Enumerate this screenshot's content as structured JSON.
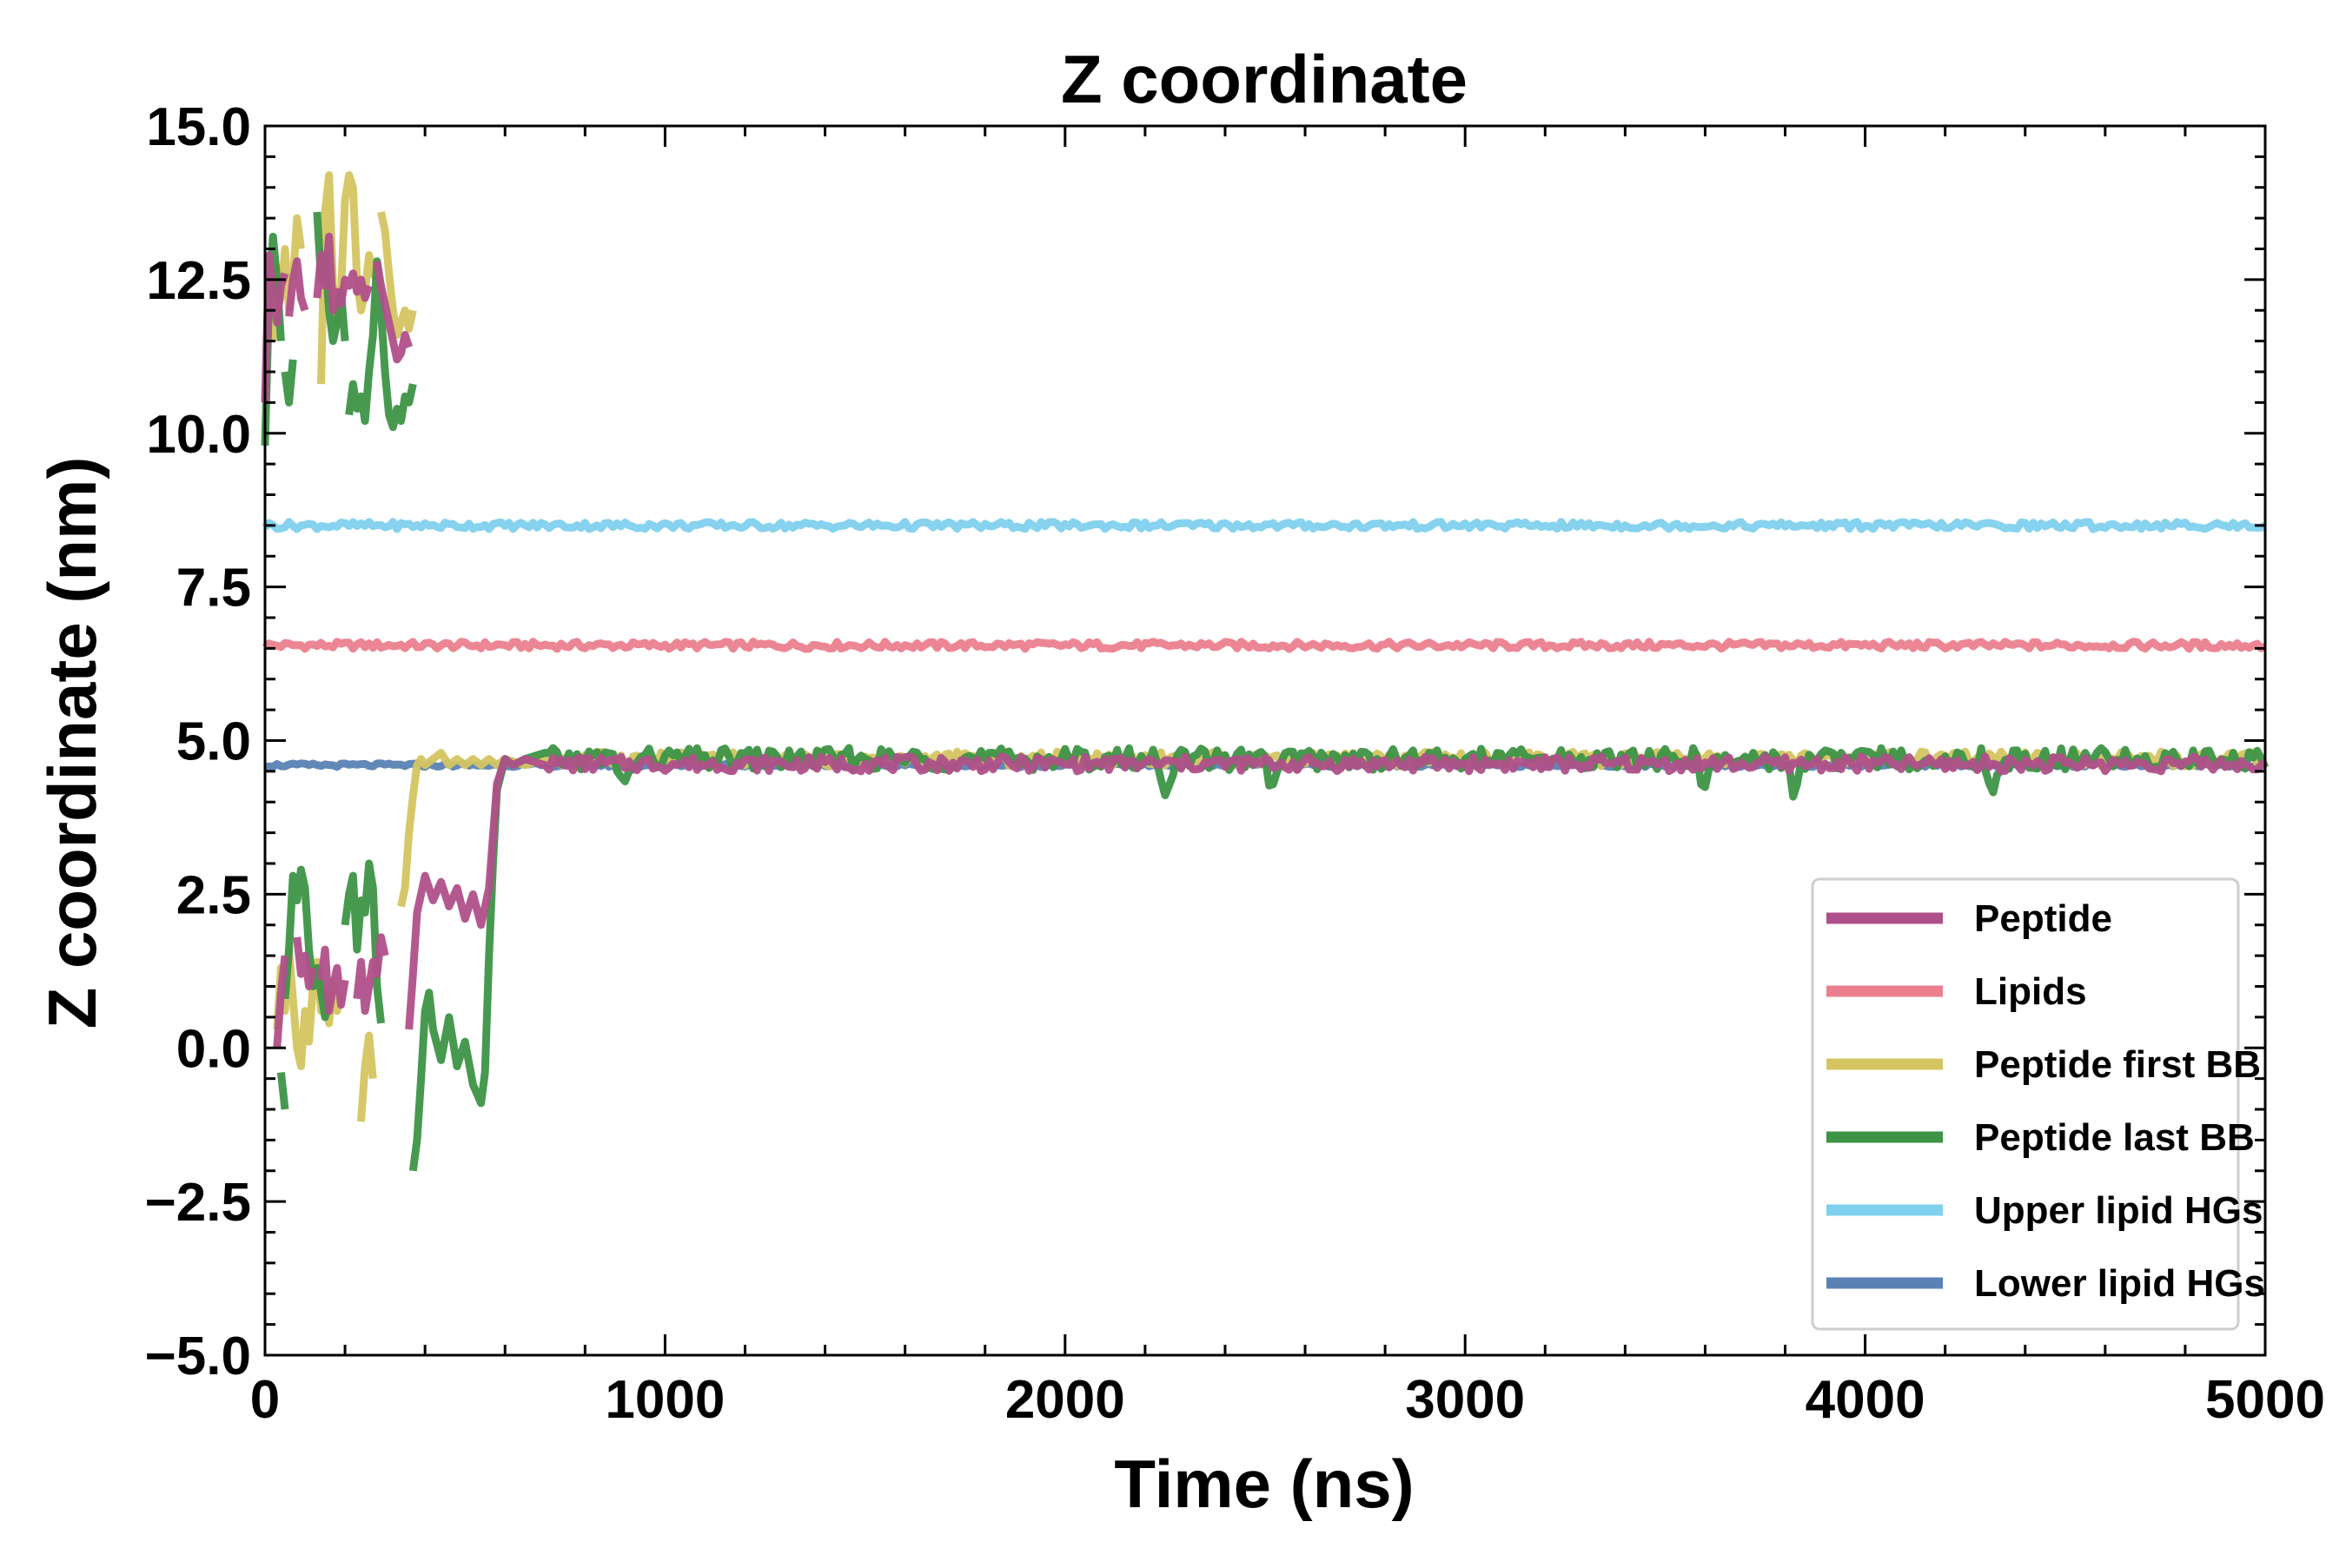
{
  "chart_data": {
    "type": "line",
    "title": "Z coordinate",
    "xlabel": "Time (ns)",
    "ylabel": "Z coordinate (nm)",
    "xlim": [
      0,
      5000
    ],
    "ylim": [
      -5.0,
      15.0
    ],
    "xticks": [
      0,
      1000,
      2000,
      3000,
      4000,
      5000
    ],
    "xtick_labels": [
      "0",
      "1000",
      "2000",
      "3000",
      "4000",
      "5000"
    ],
    "yticks": [
      -5.0,
      -2.5,
      0.0,
      2.5,
      5.0,
      7.5,
      10.0,
      12.5,
      15.0
    ],
    "ytick_labels": [
      "−5.0",
      "−2.5",
      "0.0",
      "2.5",
      "5.0",
      "7.5",
      "10.0",
      "12.5",
      "15.0"
    ],
    "grid": false,
    "legend_position": "lower-right",
    "series": [
      {
        "name": "Peptide",
        "color": "#b0508a",
        "segments": [
          {
            "x": [
              0,
              10,
              20,
              30,
              40,
              50
            ],
            "y": [
              10.5,
              12.9,
              12.3,
              11.8,
              12.4,
              12.6
            ]
          },
          {
            "x": [
              60,
              70,
              80,
              90,
              100
            ],
            "y": [
              11.9,
              12.5,
              12.8,
              12.2,
              12.0
            ]
          },
          {
            "x": [
              130,
              140,
              150,
              160,
              170,
              180,
              190,
              200,
              210,
              220,
              230,
              240,
              250,
              260
            ],
            "y": [
              12.2,
              12.9,
              12.4,
              13.2,
              12.0,
              12.3,
              12.1,
              12.5,
              12.4,
              12.6,
              12.3,
              12.5,
              12.2,
              12.4
            ]
          },
          {
            "x": [
              280,
              290,
              300,
              310,
              320,
              330,
              340,
              350,
              360
            ],
            "y": [
              12.8,
              12.4,
              12.1,
              11.8,
              11.5,
              11.2,
              11.3,
              11.6,
              11.4
            ]
          },
          {
            "x": [
              30,
              40,
              50
            ],
            "y": [
              0.0,
              0.9,
              1.5
            ]
          },
          {
            "x": [
              80,
              90,
              100,
              110,
              120
            ],
            "y": [
              1.8,
              1.2,
              1.5,
              1.0,
              1.3
            ]
          },
          {
            "x": [
              140,
              150,
              160,
              170,
              180,
              190,
              200
            ],
            "y": [
              1.1,
              1.6,
              0.6,
              1.0,
              1.3,
              0.7,
              1.1
            ]
          },
          {
            "x": [
              230,
              240,
              250,
              260,
              270,
              280,
              290,
              300
            ],
            "y": [
              0.8,
              1.4,
              0.6,
              1.0,
              1.4,
              1.2,
              1.8,
              1.5
            ]
          },
          {
            "x": [
              360,
              370,
              380,
              400,
              420,
              440,
              460,
              480,
              500,
              520,
              540,
              560,
              580,
              600,
              620,
              650,
              700
            ],
            "y": [
              0.3,
              1.2,
              2.2,
              2.8,
              2.4,
              2.7,
              2.3,
              2.6,
              2.1,
              2.5,
              2.0,
              2.6,
              4.3,
              4.7,
              4.6,
              4.7,
              4.6
            ]
          }
        ]
      },
      {
        "name": "Lipids",
        "color": "#ec7f8e",
        "segments": [
          {
            "x": [
              0,
              5000
            ],
            "y": [
              6.55,
              6.55
            ]
          }
        ]
      },
      {
        "name": "Peptide first BB",
        "color": "#d4c561",
        "segments": [
          {
            "x": [
              20,
              30,
              40,
              50,
              60
            ],
            "y": [
              11.5,
              12.7,
              12.2,
              13.0,
              12.0
            ]
          },
          {
            "x": [
              70,
              80,
              90
            ],
            "y": [
              12.5,
              13.5,
              13.0
            ]
          },
          {
            "x": [
              140,
              150,
              160,
              170,
              180,
              190,
              200,
              210,
              220,
              230,
              240,
              250,
              260,
              270,
              280
            ],
            "y": [
              10.8,
              13.6,
              14.2,
              12.4,
              11.8,
              12.3,
              13.8,
              14.2,
              14.0,
              12.5,
              12.0,
              12.3,
              12.9,
              12.6,
              12.5
            ]
          },
          {
            "x": [
              290,
              300,
              310,
              320,
              330,
              340,
              350,
              360,
              370
            ],
            "y": [
              13.6,
              13.3,
              12.6,
              12.0,
              11.6,
              11.8,
              12.0,
              11.7,
              12.0
            ]
          },
          {
            "x": [
              30,
              40,
              50,
              60,
              70,
              80,
              90,
              100,
              110,
              120,
              130,
              140,
              150,
              160,
              170,
              180,
              190
            ],
            "y": [
              0.3,
              1.3,
              0.6,
              1.6,
              0.8,
              0.0,
              -0.3,
              0.6,
              0.1,
              1.0,
              1.4,
              0.6,
              0.9,
              0.4,
              1.1,
              0.6,
              0.9
            ]
          },
          {
            "x": [
              240,
              250,
              260,
              270
            ],
            "y": [
              -1.2,
              -0.3,
              0.2,
              -0.5
            ]
          },
          {
            "x": [
              340,
              350,
              360,
              370,
              380,
              390,
              400,
              420,
              440,
              460,
              480,
              500,
              520,
              540,
              560,
              580,
              600,
              650,
              700
            ],
            "y": [
              2.3,
              2.6,
              3.5,
              4.1,
              4.6,
              4.7,
              4.6,
              4.7,
              4.8,
              4.6,
              4.7,
              4.6,
              4.7,
              4.6,
              4.7,
              4.6,
              4.7,
              4.6,
              4.7
            ]
          }
        ]
      },
      {
        "name": "Peptide last BB",
        "color": "#3d9447",
        "segments": [
          {
            "x": [
              0,
              10,
              20,
              30,
              40
            ],
            "y": [
              9.8,
              12.2,
              13.2,
              12.5,
              11.5
            ]
          },
          {
            "x": [
              50,
              60,
              70
            ],
            "y": [
              11.0,
              10.5,
              11.2
            ]
          },
          {
            "x": [
              130,
              140,
              150,
              160,
              170,
              180,
              190,
              200
            ],
            "y": [
              13.6,
              12.5,
              12.9,
              12.0,
              11.5,
              11.8,
              12.3,
              11.5
            ]
          },
          {
            "x": [
              210,
              220,
              230,
              240,
              250,
              260,
              270,
              280,
              290,
              300,
              310,
              320,
              330,
              340,
              350,
              360,
              370
            ],
            "y": [
              10.3,
              10.8,
              10.4,
              10.6,
              10.2,
              11.0,
              11.6,
              12.8,
              12.0,
              11.0,
              10.3,
              10.1,
              10.4,
              10.2,
              10.6,
              10.5,
              10.8
            ]
          },
          {
            "x": [
              40,
              50
            ],
            "y": [
              -0.4,
              -1.0
            ]
          },
          {
            "x": [
              50,
              60,
              70,
              80,
              90,
              100,
              110,
              120,
              130,
              140,
              150,
              160
            ],
            "y": [
              0.8,
              1.6,
              2.8,
              2.4,
              2.9,
              2.6,
              1.6,
              1.0,
              1.3,
              0.9,
              0.5,
              0.8
            ]
          },
          {
            "x": [
              200,
              210,
              220,
              230,
              240,
              250,
              260,
              270,
              280,
              290
            ],
            "y": [
              2.0,
              2.5,
              2.8,
              1.6,
              2.4,
              2.2,
              3.0,
              2.6,
              1.0,
              0.4
            ]
          },
          {
            "x": [
              370,
              380,
              390,
              400,
              410,
              420,
              440,
              460,
              480,
              500,
              520,
              540,
              550,
              560,
              570,
              580,
              600,
              620,
              650,
              700
            ],
            "y": [
              -2.0,
              -1.5,
              -0.5,
              0.6,
              0.9,
              0.3,
              -0.2,
              0.5,
              -0.3,
              0.1,
              -0.6,
              -0.9,
              -0.4,
              1.5,
              3.0,
              4.2,
              4.7,
              4.6,
              4.7,
              4.8
            ]
          }
        ]
      },
      {
        "name": "Upper lipid HGs",
        "color": "#7fd0ee",
        "segments": [
          {
            "x": [
              0,
              5000
            ],
            "y": [
              8.5,
              8.5
            ]
          }
        ]
      },
      {
        "name": "Lower lipid HGs",
        "color": "#5a82b4",
        "segments": [
          {
            "x": [
              0,
              5000
            ],
            "y": [
              4.6,
              4.6
            ]
          }
        ]
      }
    ]
  }
}
